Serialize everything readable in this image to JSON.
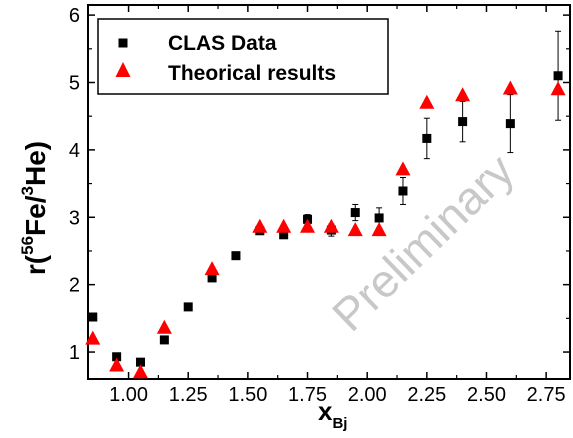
{
  "chart_data": {
    "type": "scatter",
    "title": "",
    "xlabel": {
      "main": "x",
      "sub": "Bj"
    },
    "ylabel": {
      "prefix": "r(",
      "sup1": "56",
      "mid": "Fe/",
      "sup2": "3",
      "suffix": "He)"
    },
    "xlim": [
      0.83,
      2.85
    ],
    "ylim": [
      0.6,
      6.15
    ],
    "x_ticks": [
      "1.00",
      "1.25",
      "1.50",
      "1.75",
      "2.00",
      "2.25",
      "2.50",
      "2.75"
    ],
    "y_ticks": [
      "1",
      "2",
      "3",
      "4",
      "5",
      "6"
    ],
    "watermark": "Preliminary",
    "legend_position": "top-left",
    "series": [
      {
        "name": "CLAS Data",
        "marker": "square",
        "color": "#000000",
        "points": [
          {
            "x": 0.85,
            "y": 1.52,
            "err": 0.03
          },
          {
            "x": 0.95,
            "y": 0.93,
            "err": 0.03
          },
          {
            "x": 1.05,
            "y": 0.85,
            "err": 0.03
          },
          {
            "x": 1.15,
            "y": 1.18,
            "err": 0.03
          },
          {
            "x": 1.25,
            "y": 1.67,
            "err": 0.02
          },
          {
            "x": 1.35,
            "y": 2.1,
            "err": 0.03
          },
          {
            "x": 1.45,
            "y": 2.43,
            "err": 0.03
          },
          {
            "x": 1.55,
            "y": 2.8,
            "err": 0.04
          },
          {
            "x": 1.65,
            "y": 2.74,
            "err": 0.05
          },
          {
            "x": 1.75,
            "y": 2.97,
            "err": 0.07
          },
          {
            "x": 1.85,
            "y": 2.81,
            "err": 0.09
          },
          {
            "x": 1.95,
            "y": 3.07,
            "err": 0.12
          },
          {
            "x": 2.05,
            "y": 2.99,
            "err": 0.15
          },
          {
            "x": 2.15,
            "y": 3.39,
            "err": 0.2
          },
          {
            "x": 2.25,
            "y": 4.17,
            "err": 0.3
          },
          {
            "x": 2.4,
            "y": 4.42,
            "err": 0.3
          },
          {
            "x": 2.6,
            "y": 4.39,
            "err": 0.43
          },
          {
            "x": 2.8,
            "y": 5.1,
            "err": 0.66
          }
        ]
      },
      {
        "name": "Theorical results",
        "marker": "triangle",
        "color": "#ff0000",
        "points": [
          {
            "x": 0.85,
            "y": 1.2
          },
          {
            "x": 0.95,
            "y": 0.8
          },
          {
            "x": 1.05,
            "y": 0.7
          },
          {
            "x": 1.15,
            "y": 1.36
          },
          {
            "x": 1.35,
            "y": 2.23
          },
          {
            "x": 1.55,
            "y": 2.86
          },
          {
            "x": 1.65,
            "y": 2.86
          },
          {
            "x": 1.75,
            "y": 2.86
          },
          {
            "x": 1.85,
            "y": 2.86
          },
          {
            "x": 1.95,
            "y": 2.81
          },
          {
            "x": 2.05,
            "y": 2.81
          },
          {
            "x": 2.15,
            "y": 3.71
          },
          {
            "x": 2.25,
            "y": 4.7
          },
          {
            "x": 2.4,
            "y": 4.81
          },
          {
            "x": 2.6,
            "y": 4.91
          },
          {
            "x": 2.8,
            "y": 4.9
          }
        ]
      }
    ]
  }
}
